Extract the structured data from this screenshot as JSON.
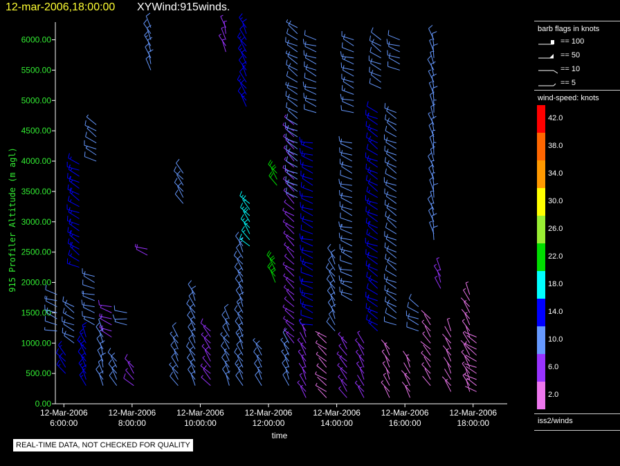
{
  "header": {
    "datetime": "12-mar-2006,18:00:00",
    "title": "XYWind:915winds."
  },
  "chart_data": {
    "type": "wind-barbs",
    "ylabel": "915 Profiler Altitude (m agl)",
    "xlabel": "time",
    "ylim": [
      0,
      6200
    ],
    "y_ticks": [
      "0.00",
      "500.00",
      "1000.00",
      "1500.00",
      "2000.00",
      "2500.00",
      "3000.00",
      "3500.00",
      "4000.00",
      "4500.00",
      "5000.00",
      "5500.00",
      "6000.00"
    ],
    "y_tick_values": [
      0,
      500,
      1000,
      1500,
      2000,
      2500,
      3000,
      3500,
      4000,
      4500,
      5000,
      5500,
      6000
    ],
    "xlim_hours": [
      5.75,
      19.0
    ],
    "x_ticks": [
      {
        "hour": 6,
        "date": "12-Mar-2006",
        "time": "6:00:00"
      },
      {
        "hour": 8,
        "date": "12-Mar-2006",
        "time": "8:00:00"
      },
      {
        "hour": 10,
        "date": "12-Mar-2006",
        "time": "10:00:00"
      },
      {
        "hour": 12,
        "date": "12-Mar-2006",
        "time": "12:00:00"
      },
      {
        "hour": 14,
        "date": "12-Mar-2006",
        "time": "14:00:00"
      },
      {
        "hour": 16,
        "date": "12-Mar-2006",
        "time": "16:00:00"
      },
      {
        "hour": 18,
        "date": "12-Mar-2006",
        "time": "18:00:00"
      }
    ],
    "profiles": [
      {
        "hour": 5.8,
        "from": 1200,
        "to": 1800,
        "speed": 11,
        "dir": 290
      },
      {
        "hour": 6.05,
        "from": 500,
        "to": 800,
        "speed": 14,
        "dir": 320
      },
      {
        "hour": 6.3,
        "from": 1000,
        "to": 1650,
        "speed": 13,
        "dir": 300
      },
      {
        "hour": 6.45,
        "from": 2250,
        "to": 4000,
        "speed": 17,
        "dir": 300
      },
      {
        "hour": 6.65,
        "from": 300,
        "to": 1100,
        "speed": 16,
        "dir": 330
      },
      {
        "hour": 6.9,
        "from": 1300,
        "to": 2150,
        "speed": 11,
        "dir": 290
      },
      {
        "hour": 6.95,
        "from": 4000,
        "to": 4600,
        "speed": 10,
        "dir": 300
      },
      {
        "hour": 7.15,
        "from": 300,
        "to": 1200,
        "speed": 12,
        "dir": 340
      },
      {
        "hour": 7.4,
        "from": 1100,
        "to": 1600,
        "speed": 9,
        "dir": 290
      },
      {
        "hour": 7.55,
        "from": 300,
        "to": 700,
        "speed": 12,
        "dir": 330
      },
      {
        "hour": 7.85,
        "from": 1300,
        "to": 1550,
        "speed": 10,
        "dir": 280
      },
      {
        "hour": 8.05,
        "from": 300,
        "to": 650,
        "speed": 9,
        "dir": 320
      },
      {
        "hour": 8.55,
        "from": 5500,
        "to": 6200,
        "speed": 13,
        "dir": 340
      },
      {
        "hour": 8.45,
        "from": 2450,
        "to": 2550,
        "speed": 9,
        "dir": 290
      },
      {
        "hour": 9.35,
        "from": 300,
        "to": 1100,
        "speed": 10,
        "dir": 330
      },
      {
        "hour": 9.5,
        "from": 3300,
        "to": 3850,
        "speed": 12,
        "dir": 320
      },
      {
        "hour": 9.85,
        "from": 300,
        "to": 1850,
        "speed": 12,
        "dir": 330
      },
      {
        "hour": 10.3,
        "from": 300,
        "to": 1200,
        "speed": 9,
        "dir": 320
      },
      {
        "hour": 10.75,
        "from": 5800,
        "to": 6200,
        "speed": 7,
        "dir": 340
      },
      {
        "hour": 10.85,
        "from": 300,
        "to": 1400,
        "speed": 10,
        "dir": 330
      },
      {
        "hour": 11.25,
        "from": 300,
        "to": 2600,
        "speed": 13,
        "dir": 330
      },
      {
        "hour": 11.35,
        "from": 4900,
        "to": 6200,
        "speed": 14,
        "dir": 330
      },
      {
        "hour": 11.45,
        "from": 2600,
        "to": 3300,
        "speed": 18,
        "dir": 320
      },
      {
        "hour": 11.8,
        "from": 300,
        "to": 900,
        "speed": 10,
        "dir": 330
      },
      {
        "hour": 12.2,
        "from": 2000,
        "to": 2300,
        "speed": 22,
        "dir": 330
      },
      {
        "hour": 12.25,
        "from": 3600,
        "to": 3800,
        "speed": 22,
        "dir": 330
      },
      {
        "hour": 12.6,
        "from": 300,
        "to": 1000,
        "speed": 10,
        "dir": 330
      },
      {
        "hour": 12.75,
        "from": 1000,
        "to": 4600,
        "speed": 7,
        "dir": 310
      },
      {
        "hour": 12.85,
        "from": 3400,
        "to": 6200,
        "speed": 11,
        "dir": 300
      },
      {
        "hour": 13.1,
        "from": 100,
        "to": 1200,
        "speed": 6,
        "dir": 330
      },
      {
        "hour": 13.3,
        "from": 1300,
        "to": 4300,
        "speed": 14,
        "dir": 290
      },
      {
        "hour": 13.4,
        "from": 4800,
        "to": 6000,
        "speed": 12,
        "dir": 290
      },
      {
        "hour": 13.7,
        "from": 100,
        "to": 1100,
        "speed": 5,
        "dir": 310
      },
      {
        "hour": 13.95,
        "from": 1200,
        "to": 2400,
        "speed": 12,
        "dir": 330
      },
      {
        "hour": 14.3,
        "from": 100,
        "to": 1000,
        "speed": 7,
        "dir": 320
      },
      {
        "hour": 14.45,
        "from": 1700,
        "to": 4300,
        "speed": 13,
        "dir": 290
      },
      {
        "hour": 14.5,
        "from": 4800,
        "to": 6000,
        "speed": 13,
        "dir": 290
      },
      {
        "hour": 14.8,
        "from": 100,
        "to": 1000,
        "speed": 6,
        "dir": 330
      },
      {
        "hour": 15.2,
        "from": 1200,
        "to": 4800,
        "speed": 14,
        "dir": 300
      },
      {
        "hour": 15.3,
        "from": 5200,
        "to": 6000,
        "speed": 12,
        "dir": 300
      },
      {
        "hour": 15.55,
        "from": 100,
        "to": 900,
        "speed": 5,
        "dir": 330
      },
      {
        "hour": 15.75,
        "from": 1300,
        "to": 4800,
        "speed": 12,
        "dir": 300
      },
      {
        "hour": 15.85,
        "from": 5500,
        "to": 6000,
        "speed": 12,
        "dir": 290
      },
      {
        "hour": 16.15,
        "from": 100,
        "to": 700,
        "speed": 4,
        "dir": 330
      },
      {
        "hour": 16.4,
        "from": 1200,
        "to": 1600,
        "speed": 12,
        "dir": 300
      },
      {
        "hour": 16.75,
        "from": 300,
        "to": 1400,
        "speed": 4,
        "dir": 320
      },
      {
        "hour": 16.85,
        "from": 2700,
        "to": 6000,
        "speed": 10,
        "dir": 345
      },
      {
        "hour": 17.05,
        "from": 1900,
        "to": 2200,
        "speed": 8,
        "dir": 340
      },
      {
        "hour": 17.35,
        "from": 200,
        "to": 1200,
        "speed": 3,
        "dir": 330
      },
      {
        "hour": 17.9,
        "from": 200,
        "to": 1800,
        "speed": 5,
        "dir": 330
      },
      {
        "hour": 18.1,
        "from": 200,
        "to": 1100,
        "speed": 3,
        "dir": 300
      }
    ],
    "grid": false
  },
  "legend": {
    "barb_title": "barb flags in knots",
    "barb_entries": [
      "== 100",
      "== 50",
      "== 10",
      "== 5"
    ],
    "speed_title": "wind-speed: knots",
    "colorbar": [
      {
        "label": "42.0",
        "color": "#ff0000"
      },
      {
        "label": "38.0",
        "color": "#ff6600"
      },
      {
        "label": "34.0",
        "color": "#ff9900"
      },
      {
        "label": "30.0",
        "color": "#ffff00"
      },
      {
        "label": "26.0",
        "color": "#99ee33"
      },
      {
        "label": "22.0",
        "color": "#00dd00"
      },
      {
        "label": "18.0",
        "color": "#00ffff"
      },
      {
        "label": "14.0",
        "color": "#0000ff"
      },
      {
        "label": "10.0",
        "color": "#6699ff"
      },
      {
        "label": "6.0",
        "color": "#9933ff"
      },
      {
        "label": "2.0",
        "color": "#ee77ee"
      }
    ],
    "station": "iss2/winds"
  },
  "notice": "REAL-TIME DATA, NOT CHECKED FOR QUALITY",
  "colors": {
    "axis_text": "#33ee33",
    "axis_line": "#ffffff",
    "title_date": "#ffff33"
  }
}
